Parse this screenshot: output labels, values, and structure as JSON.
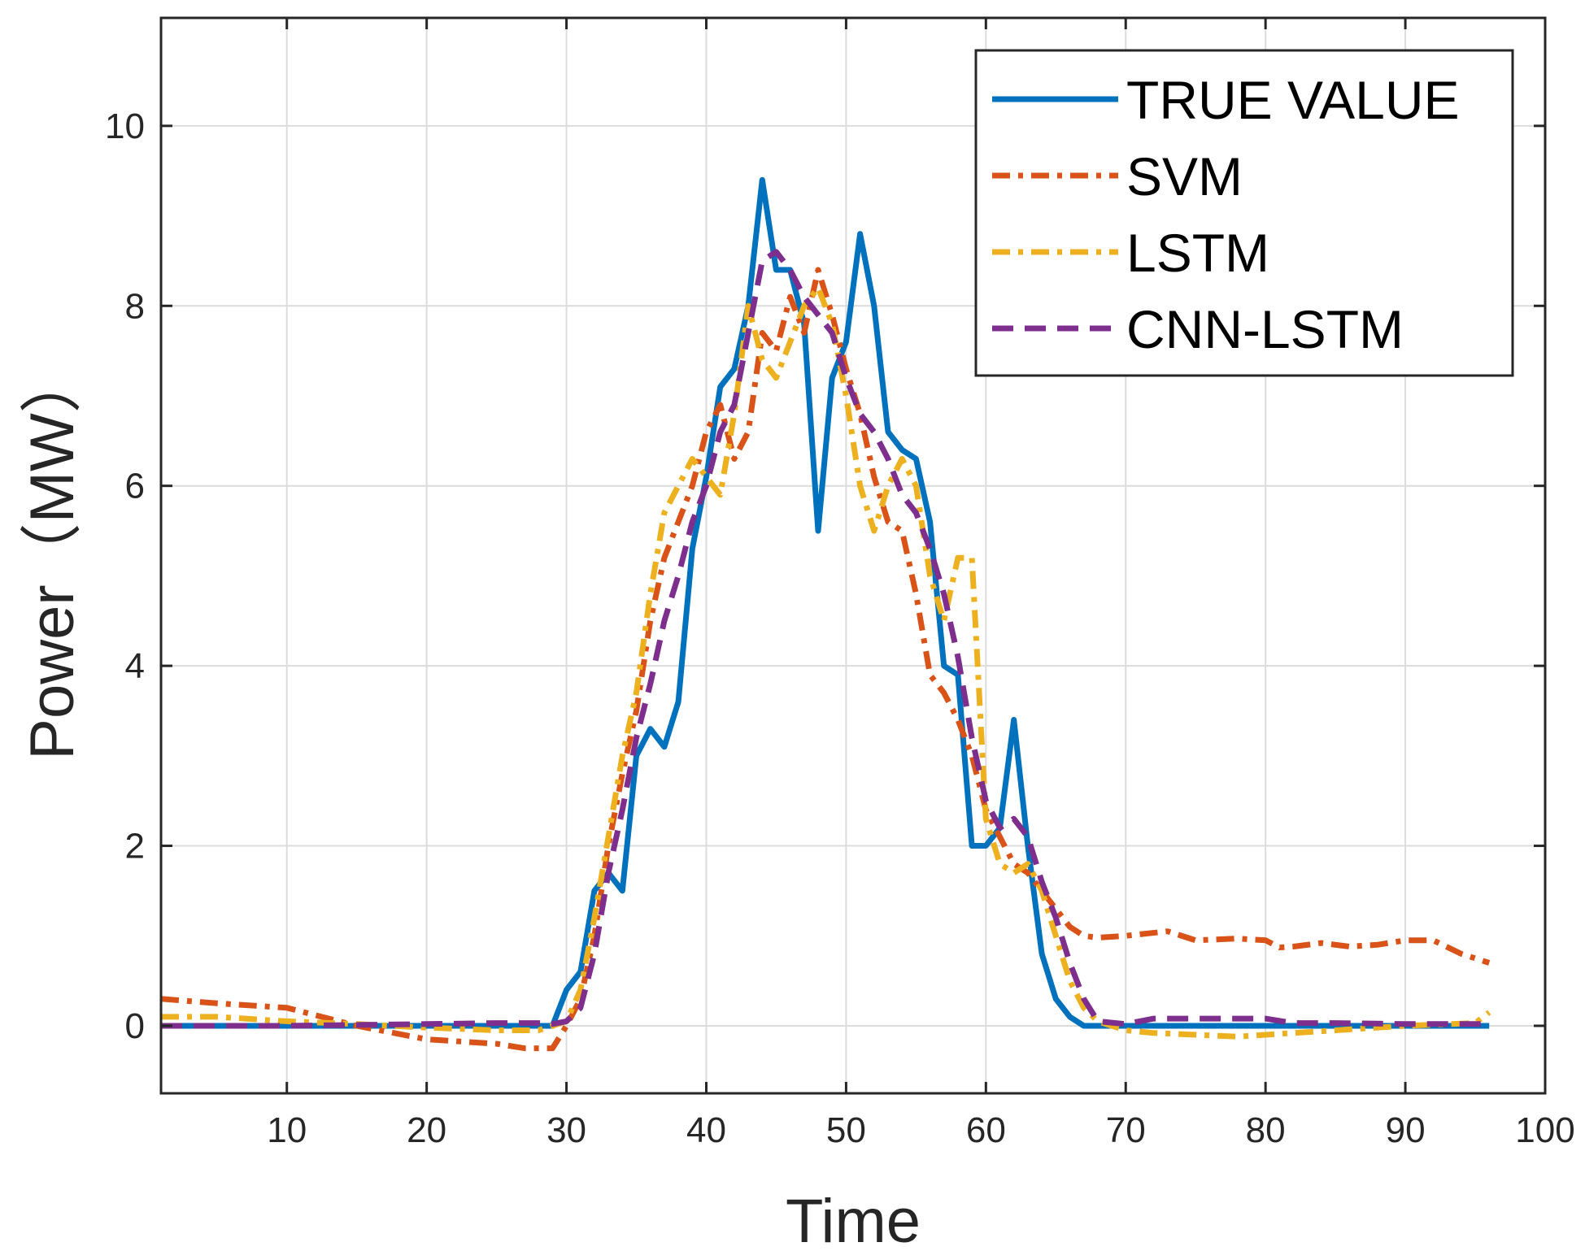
{
  "chart_data": {
    "type": "line",
    "title": "",
    "xlabel": "Time",
    "ylabel": "Power（MW）",
    "xlim": [
      1,
      100
    ],
    "ylim": [
      -0.75,
      11.2
    ],
    "xticks": [
      10,
      20,
      30,
      40,
      50,
      60,
      70,
      80,
      90,
      100
    ],
    "yticks": [
      0,
      2,
      4,
      6,
      8,
      10
    ],
    "xtick_labels": [
      "10",
      "20",
      "30",
      "40",
      "50",
      "60",
      "70",
      "80",
      "90",
      "100"
    ],
    "ytick_labels": [
      "0",
      "2",
      "4",
      "6",
      "8",
      "10"
    ],
    "grid": true,
    "legend_position": "top-right",
    "series": [
      {
        "name": "TRUE VALUE",
        "color": "#0072BD",
        "dash": "solid",
        "x": [
          1,
          10,
          20,
          28,
          29,
          30,
          31,
          32,
          33,
          34,
          35,
          36,
          37,
          38,
          39,
          40,
          41,
          42,
          43,
          44,
          45,
          46,
          47,
          48,
          49,
          50,
          51,
          52,
          53,
          54,
          55,
          56,
          57,
          58,
          59,
          60,
          61,
          62,
          63,
          64,
          65,
          66,
          67,
          70,
          80,
          90,
          96
        ],
        "y": [
          0,
          0,
          0,
          0,
          0,
          0.4,
          0.6,
          1.5,
          1.7,
          1.5,
          3.0,
          3.3,
          3.1,
          3.6,
          5.3,
          6.1,
          7.1,
          7.3,
          8.0,
          9.4,
          8.4,
          8.4,
          7.8,
          5.5,
          7.2,
          7.6,
          8.8,
          8.0,
          6.6,
          6.4,
          6.3,
          5.6,
          4.0,
          3.9,
          2.0,
          2.0,
          2.2,
          3.4,
          2.0,
          0.8,
          0.3,
          0.1,
          0,
          0,
          0,
          0,
          0
        ]
      },
      {
        "name": "SVM",
        "color": "#D95319",
        "dash": "dashdot",
        "x": [
          1,
          5,
          10,
          15,
          20,
          25,
          27,
          29,
          30,
          31,
          32,
          33,
          34,
          35,
          36,
          37,
          38,
          39,
          40,
          41,
          42,
          43,
          44,
          45,
          46,
          47,
          48,
          49,
          50,
          51,
          52,
          53,
          54,
          55,
          56,
          57,
          58,
          59,
          60,
          61,
          62,
          63,
          64,
          65,
          66,
          67,
          68,
          70,
          73,
          75,
          78,
          80,
          81,
          82,
          84,
          86,
          88,
          90,
          92,
          94,
          96
        ],
        "y": [
          0.3,
          0.25,
          0.2,
          0,
          -0.15,
          -0.2,
          -0.25,
          -0.25,
          0,
          0.3,
          1.0,
          2.0,
          2.8,
          3.5,
          4.5,
          5.2,
          5.6,
          6.0,
          6.6,
          6.9,
          6.3,
          6.6,
          7.7,
          7.5,
          8.1,
          7.7,
          8.4,
          7.9,
          7.3,
          6.8,
          6.1,
          5.6,
          5.5,
          4.8,
          3.9,
          3.7,
          3.4,
          3.0,
          2.4,
          2.1,
          1.8,
          1.7,
          1.5,
          1.3,
          1.1,
          1.0,
          0.98,
          1.0,
          1.05,
          0.95,
          0.97,
          0.95,
          0.87,
          0.88,
          0.92,
          0.88,
          0.9,
          0.95,
          0.95,
          0.8,
          0.7
        ]
      },
      {
        "name": "LSTM",
        "color": "#EDB120",
        "dash": "dashdot",
        "x": [
          1,
          5,
          10,
          15,
          20,
          25,
          28,
          30,
          31,
          32,
          33,
          34,
          35,
          36,
          37,
          38,
          39,
          40,
          41,
          42,
          43,
          44,
          45,
          46,
          47,
          48,
          49,
          50,
          51,
          52,
          53,
          54,
          55,
          56,
          57,
          58,
          59,
          60,
          61,
          62,
          63,
          64,
          65,
          66,
          67,
          68,
          69,
          70,
          72,
          75,
          78,
          80,
          85,
          90,
          95,
          96
        ],
        "y": [
          0.1,
          0.1,
          0.05,
          0.02,
          -0.02,
          -0.05,
          -0.05,
          0.05,
          0.4,
          1.2,
          2.1,
          3.0,
          3.7,
          4.8,
          5.7,
          6.0,
          6.3,
          6.1,
          5.9,
          6.8,
          8.0,
          7.4,
          7.2,
          7.6,
          8.0,
          8.2,
          7.8,
          7.0,
          6.0,
          5.5,
          6.0,
          6.3,
          6.0,
          5.0,
          4.5,
          5.2,
          5.2,
          2.3,
          1.8,
          1.7,
          1.8,
          1.5,
          1.0,
          0.5,
          0.2,
          0.05,
          0,
          -0.05,
          -0.08,
          -0.1,
          -0.12,
          -0.1,
          -0.05,
          0,
          0.03,
          0.15
        ]
      },
      {
        "name": "CNN-LSTM",
        "color": "#7E2F8E",
        "dash": "dashed",
        "x": [
          1,
          10,
          20,
          25,
          28,
          29,
          30,
          31,
          32,
          33,
          34,
          35,
          36,
          37,
          38,
          39,
          40,
          41,
          42,
          43,
          44,
          45,
          46,
          47,
          48,
          49,
          50,
          51,
          52,
          53,
          54,
          55,
          56,
          57,
          58,
          59,
          60,
          61,
          62,
          63,
          64,
          65,
          66,
          67,
          68,
          70,
          72,
          75,
          78,
          80,
          82,
          85,
          90,
          96
        ],
        "y": [
          0,
          0,
          0.02,
          0.03,
          0.03,
          0.02,
          0.05,
          0.2,
          0.8,
          1.7,
          2.4,
          3.2,
          3.8,
          4.5,
          5.0,
          5.6,
          6.0,
          6.6,
          6.9,
          7.7,
          8.5,
          8.6,
          8.4,
          8.1,
          7.9,
          7.7,
          7.2,
          6.8,
          6.6,
          6.3,
          5.9,
          5.7,
          5.3,
          4.8,
          4.1,
          3.2,
          2.5,
          2.2,
          2.3,
          2.1,
          1.6,
          1.2,
          0.7,
          0.3,
          0.05,
          0.02,
          0.08,
          0.08,
          0.08,
          0.08,
          0.03,
          0.03,
          0.02,
          0.02
        ]
      }
    ]
  }
}
